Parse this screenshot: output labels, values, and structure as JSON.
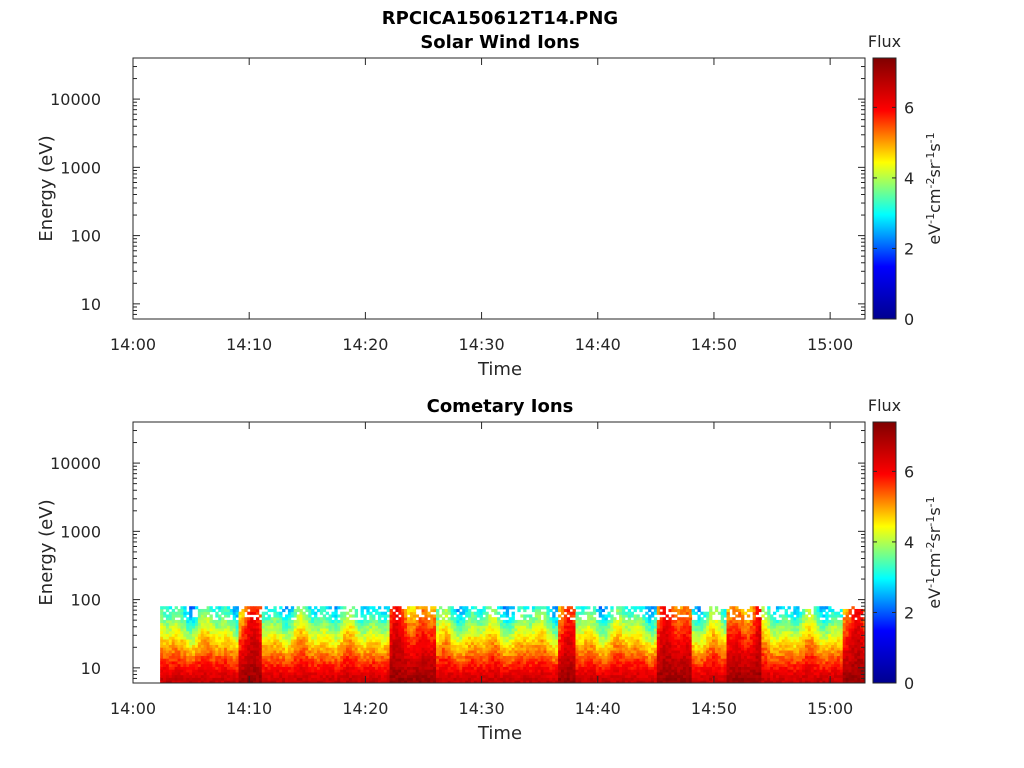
{
  "figure_title": "RPCICA150612T14.PNG",
  "colorbar": {
    "title": "Flux",
    "unit_label": "eV-1cm-2sr-1s-1",
    "range": [
      0,
      7.4
    ],
    "ticks": [
      "0",
      "2",
      "4",
      "6"
    ],
    "colormap": "jet",
    "colormap_stops": [
      "#00008f",
      "#0000ff",
      "#00ffff",
      "#ffff00",
      "#ff0000",
      "#800000"
    ]
  },
  "chart_data": [
    {
      "type": "heatmap",
      "title": "Solar Wind Ions",
      "xlabel": "Time",
      "ylabel": "Energy (eV)",
      "x_range": [
        "14:00",
        "15:03"
      ],
      "x_ticks": [
        "14:00",
        "14:10",
        "14:20",
        "14:30",
        "14:40",
        "14:50",
        "15:00"
      ],
      "y_scale": "log",
      "y_range": [
        6,
        40000
      ],
      "y_ticks": [
        "10",
        "100",
        "1000",
        "10000"
      ],
      "data_present": false,
      "note_visible": ""
    },
    {
      "type": "heatmap",
      "title": "Cometary Ions",
      "xlabel": "Time",
      "ylabel": "Energy (eV)",
      "x_range": [
        "14:00",
        "15:03"
      ],
      "x_ticks": [
        "14:00",
        "14:10",
        "14:20",
        "14:30",
        "14:40",
        "14:50",
        "15:00"
      ],
      "y_scale": "log",
      "y_range": [
        6,
        40000
      ],
      "y_ticks": [
        "10",
        "100",
        "1000",
        "10000"
      ],
      "data_present": true,
      "data_time_start": "14:02:20",
      "data_time_end": "15:03",
      "energy_max": 80,
      "flux_at_lowest_energy": 6.6,
      "flux_at_top_energy": 3.0,
      "enhanced_intervals": [
        "14:09-14:11",
        "14:22-14:26",
        "14:36:30-14:38",
        "14:45-14:48",
        "14:51-14:54",
        "15:01-15:03"
      ]
    }
  ]
}
